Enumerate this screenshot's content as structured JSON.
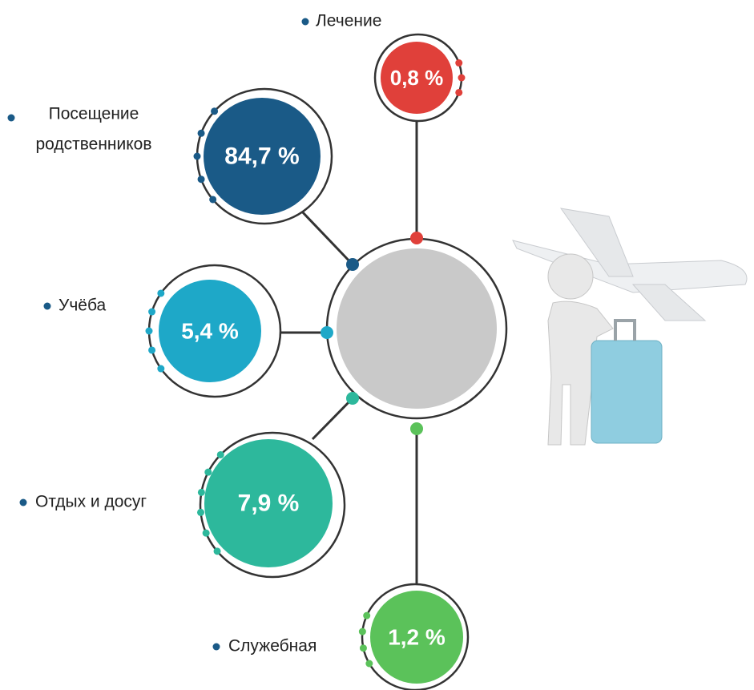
{
  "nodes": [
    {
      "label": "Лечение",
      "value": "0,8 %"
    },
    {
      "label_lines": [
        "Посещение",
        "родственников"
      ],
      "value": "84,7 %"
    },
    {
      "label": "Учёба",
      "value": "5,4 %"
    },
    {
      "label": "Отдых и досуг",
      "value": "7,9 %"
    },
    {
      "label": "Служебная",
      "value": "1,2 %"
    }
  ]
}
